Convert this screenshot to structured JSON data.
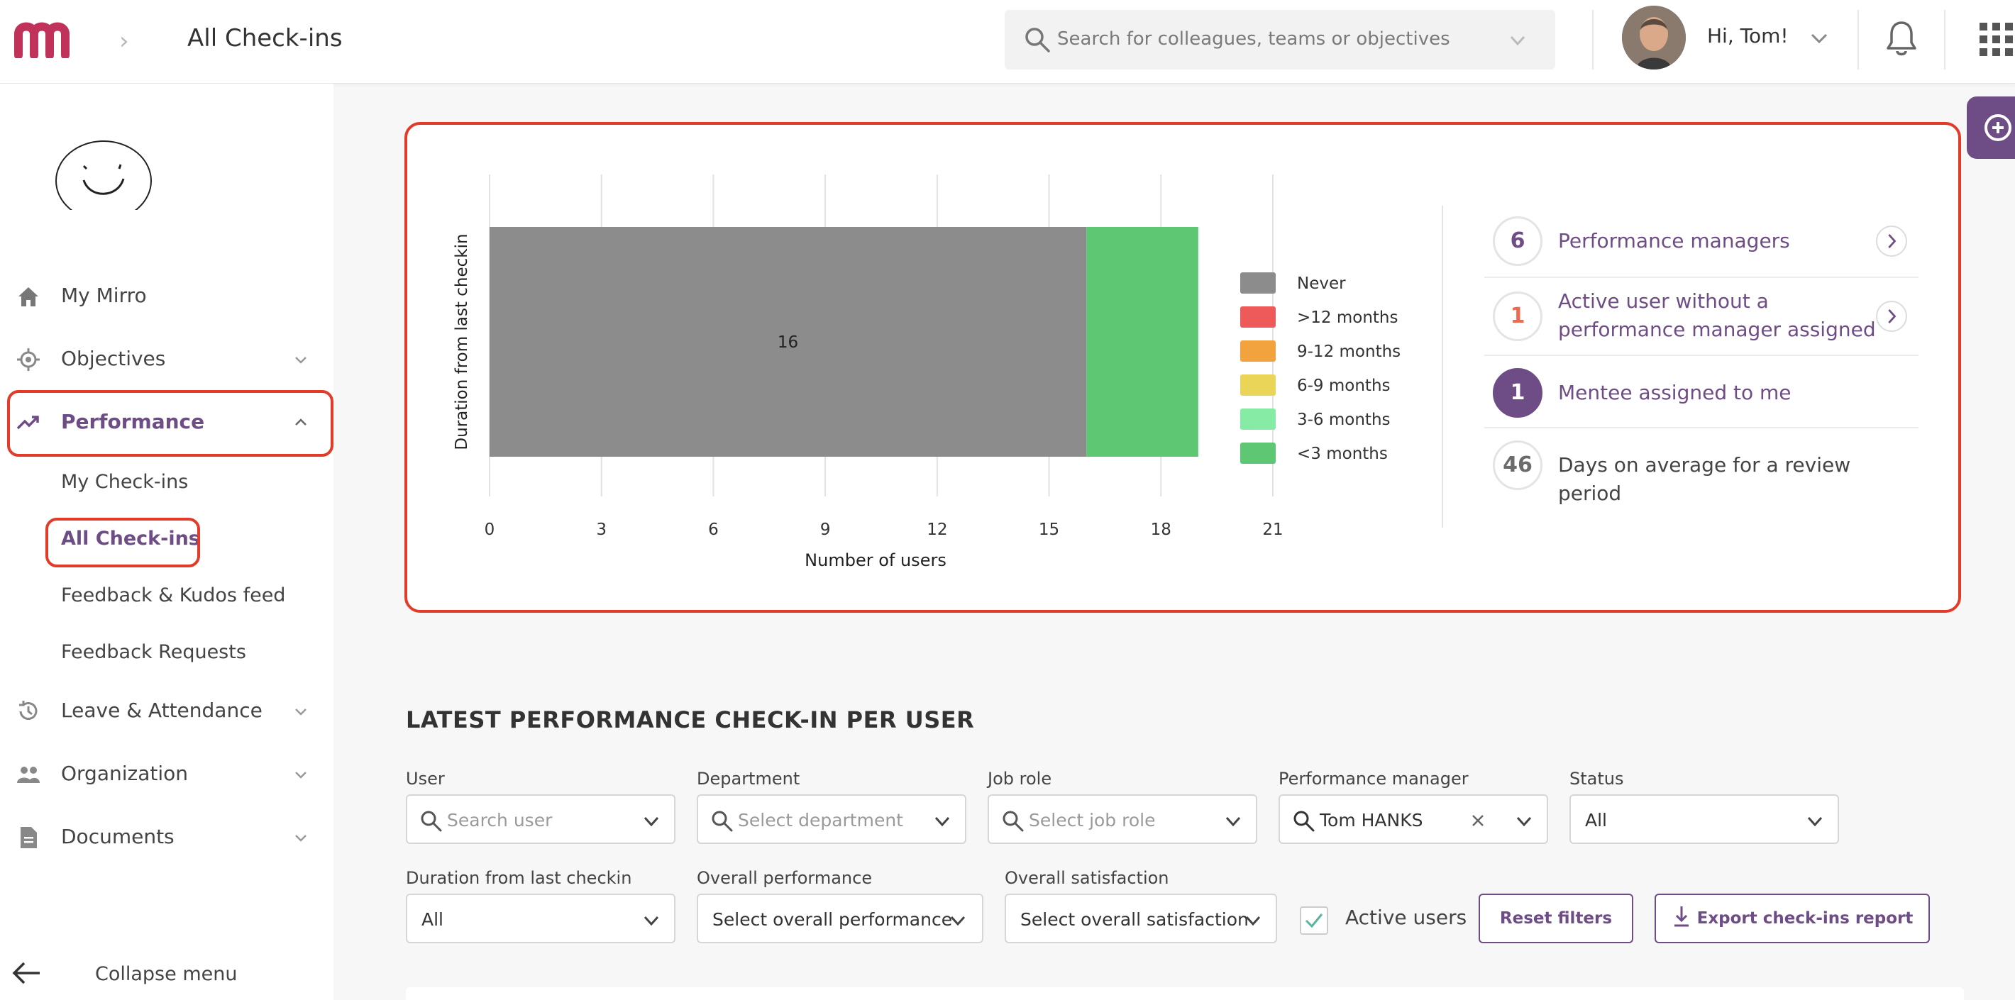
{
  "header": {
    "title": "All Check-ins",
    "search_placeholder": "Search for colleagues, teams or objectives",
    "greeting": "Hi, Tom!"
  },
  "sidebar": {
    "items": [
      {
        "label": "My Mirro",
        "icon": "home-icon"
      },
      {
        "label": "Objectives",
        "icon": "target-icon"
      },
      {
        "label": "Performance",
        "icon": "trending-up-icon"
      },
      {
        "label": "Leave & Attendance",
        "icon": "history-icon"
      },
      {
        "label": "Organization",
        "icon": "people-icon"
      },
      {
        "label": "Documents",
        "icon": "document-icon"
      }
    ],
    "sub_items": [
      "My Check-ins",
      "All Check-ins",
      "Feedback & Kudos feed",
      "Feedback Requests"
    ],
    "collapse_label": "Collapse menu"
  },
  "chart_data": {
    "type": "bar",
    "orientation": "horizontal",
    "stacked": true,
    "categories": [
      ""
    ],
    "series": [
      {
        "name": "Never",
        "values": [
          16
        ],
        "color": "#8c8c8c",
        "label": "16"
      },
      {
        "name": ">12 months",
        "values": [
          0
        ],
        "color": "#ee5a5a"
      },
      {
        "name": "9-12 months",
        "values": [
          0
        ],
        "color": "#f3a33e"
      },
      {
        "name": "6-9 months",
        "values": [
          0
        ],
        "color": "#ebd558"
      },
      {
        "name": "3-6 months",
        "values": [
          0
        ],
        "color": "#86eba5"
      },
      {
        "name": "<3 months",
        "values": [
          3
        ],
        "color": "#5ec774"
      }
    ],
    "xlabel": "Number of users",
    "ylabel": "Duration from last checkin",
    "xlim": [
      0,
      21
    ],
    "xticks": [
      0,
      3,
      6,
      9,
      12,
      15,
      18,
      21
    ],
    "grid": "vertical",
    "legend": "right"
  },
  "stats": [
    {
      "value": "6",
      "label_lines": [
        "Performance managers"
      ],
      "style": "outline",
      "link": true
    },
    {
      "value": "1",
      "label_lines": [
        "Active user without a",
        "performance manager assigned"
      ],
      "style": "orange",
      "link": true
    },
    {
      "value": "1",
      "label_lines": [
        "Mentee assigned to me"
      ],
      "style": "filled",
      "link": false
    },
    {
      "value": "46",
      "label_lines": [
        "Days on average for a review period"
      ],
      "style": "grey",
      "link": false
    }
  ],
  "table": {
    "title": "LATEST PERFORMANCE CHECK-IN PER USER",
    "filters": {
      "user": {
        "label": "User",
        "placeholder": "Search user"
      },
      "department": {
        "label": "Department",
        "placeholder": "Select department"
      },
      "job_role": {
        "label": "Job role",
        "placeholder": "Select job role"
      },
      "manager": {
        "label": "Performance manager",
        "value": "Tom HANKS"
      },
      "status": {
        "label": "Status",
        "value": "All"
      },
      "duration": {
        "label": "Duration from last checkin",
        "value": "All"
      },
      "overall_performance": {
        "label": "Overall performance",
        "value": "Select overall performance"
      },
      "overall_satisfaction": {
        "label": "Overall satisfaction",
        "value": "Select overall satisfaction"
      }
    },
    "active_users_label": "Active users",
    "active_users_checked": true,
    "reset_label": "Reset filters",
    "export_label": "Export check-ins report"
  },
  "colors": {
    "accent": "#6e4c85",
    "brand": "#c0325a",
    "highlight": "#e23b2a"
  }
}
